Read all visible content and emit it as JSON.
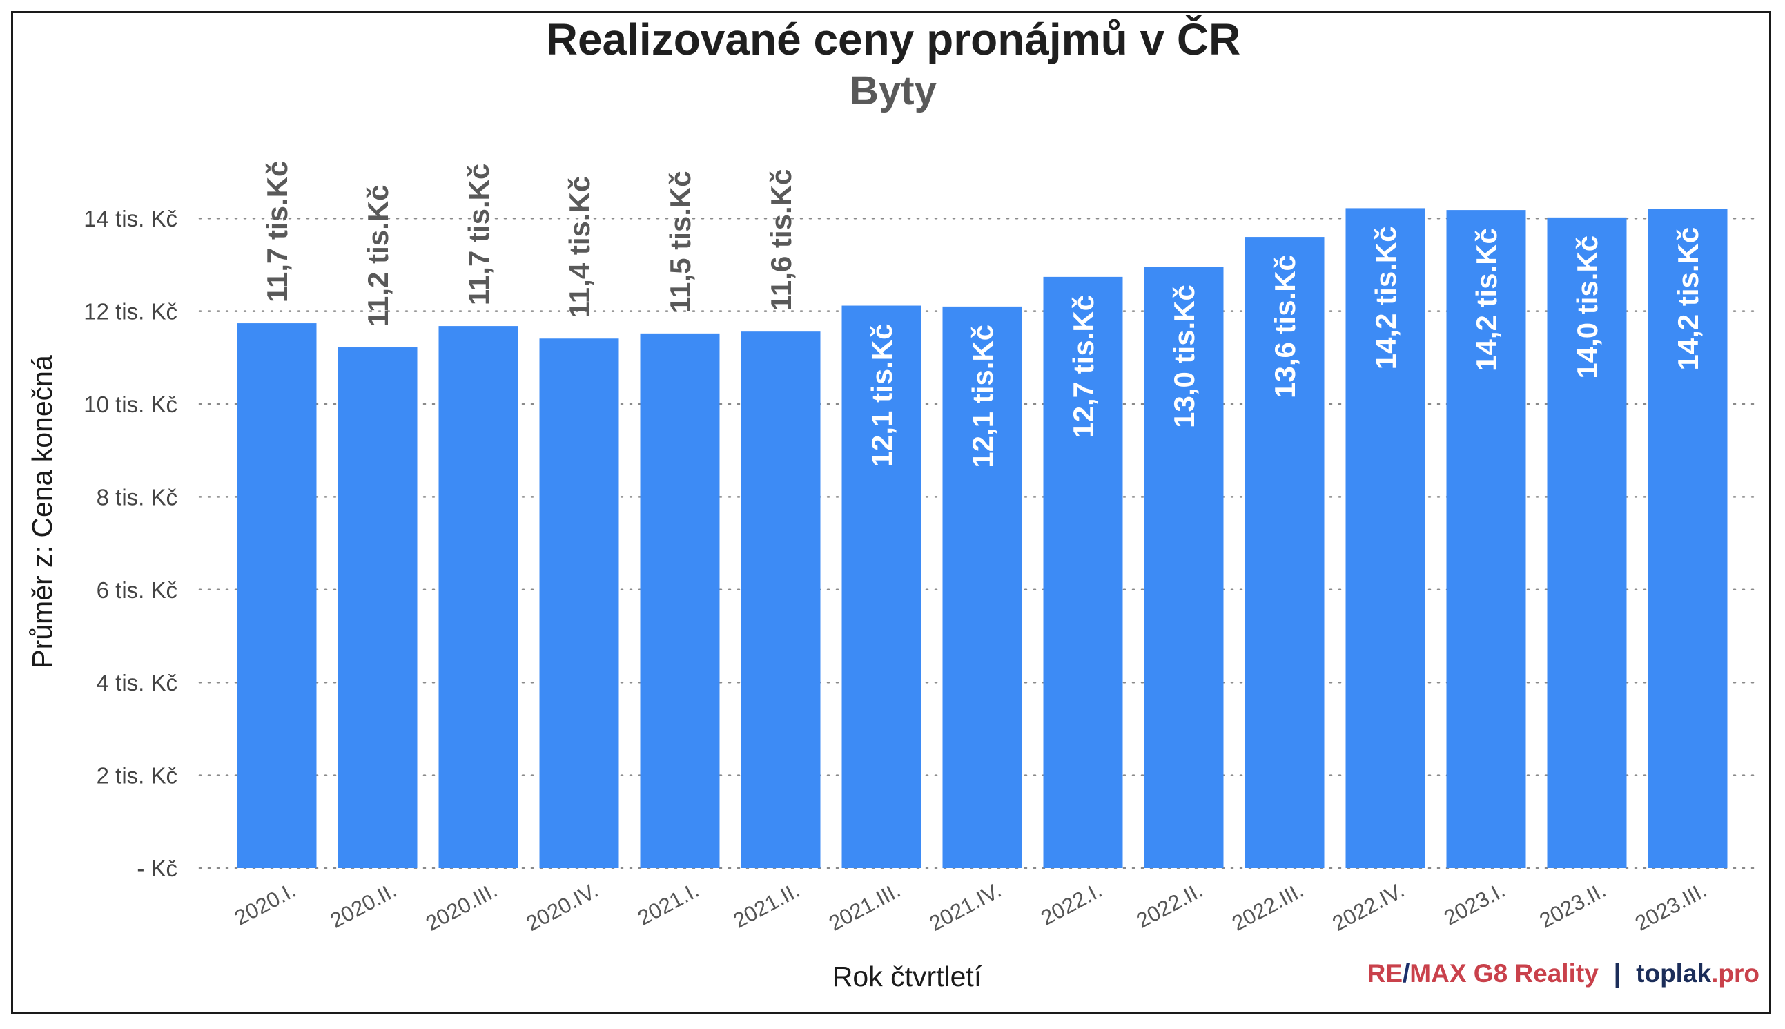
{
  "chart_data": {
    "type": "bar",
    "title": "Realizované ceny pronájmů v ČR",
    "subtitle": "Byty",
    "xlabel": "Rok čtvrtletí",
    "ylabel": "Průměr z: Cena konečná",
    "ylim": [
      0,
      15
    ],
    "yticks": [
      {
        "value": 0,
        "label": "- Kč"
      },
      {
        "value": 2,
        "label": "2 tis. Kč"
      },
      {
        "value": 4,
        "label": "4 tis. Kč"
      },
      {
        "value": 6,
        "label": "6 tis. Kč"
      },
      {
        "value": 8,
        "label": "8 tis. Kč"
      },
      {
        "value": 10,
        "label": "10 tis. Kč"
      },
      {
        "value": 12,
        "label": "12 tis. Kč"
      },
      {
        "value": 14,
        "label": "14 tis. Kč"
      }
    ],
    "grid": "horizontal-dotted",
    "categories": [
      "2020.I.",
      "2020.II.",
      "2020.III.",
      "2020.IV.",
      "2021.I.",
      "2021.II.",
      "2021.III.",
      "2021.IV.",
      "2022.I.",
      "2022.II.",
      "2022.III.",
      "2022.IV.",
      "2023.I.",
      "2023.II.",
      "2023.III."
    ],
    "values": [
      11.74,
      11.22,
      11.68,
      11.41,
      11.52,
      11.56,
      12.12,
      12.1,
      12.74,
      12.96,
      13.6,
      14.22,
      14.18,
      14.02,
      14.2
    ],
    "data_labels": [
      "11,7 tis.Kč",
      "11,2 tis.Kč",
      "11,7 tis.Kč",
      "11,4 tis.Kč",
      "11,5 tis.Kč",
      "11,6 tis.Kč",
      "12,1 tis.Kč",
      "12,1 tis.Kč",
      "12,7 tis.Kč",
      "13,0 tis.Kč",
      "13,6 tis.Kč",
      "14,2 tis.Kč",
      "14,2 tis.Kč",
      "14,0 tis.Kč",
      "14,2 tis.Kč"
    ],
    "bar_color": "#3d8bf5"
  },
  "branding": {
    "remax_re": "RE",
    "remax_slash": "/",
    "remax_rest": "MAX G8 Reality",
    "separator": "|",
    "toplak": "toplak",
    "toplak_tld": ".pro",
    "colors": {
      "remax_red": "#c9414b",
      "remax_blue": "#1b2f6b",
      "toplak_dark": "#1b2d59",
      "toplak_red": "#c9414b"
    }
  }
}
